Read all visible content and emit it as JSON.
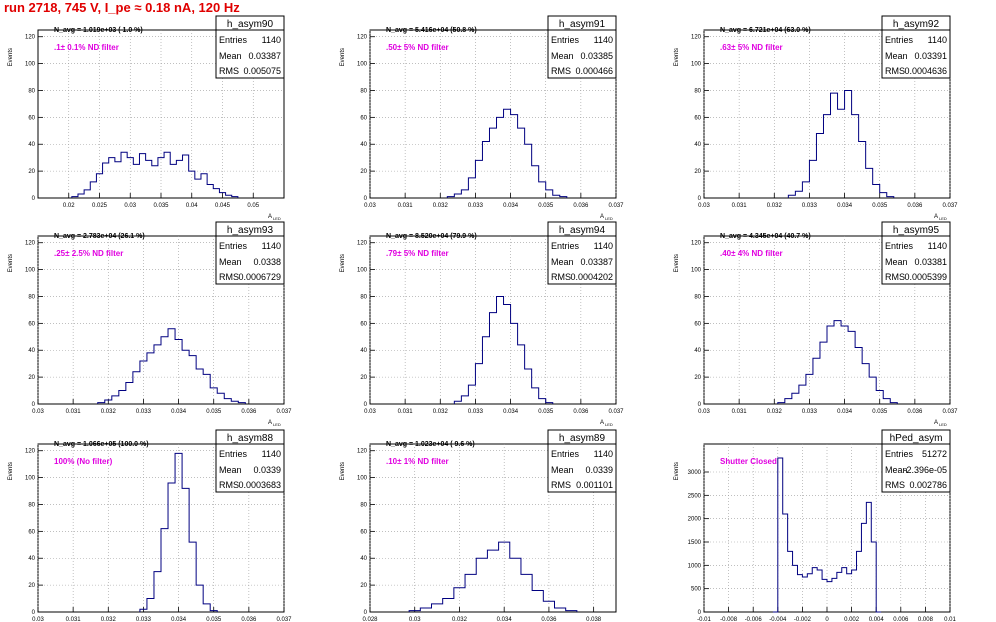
{
  "run_title": "run 2718,   745 V, I_pe ≈ 0.18 nA, 120 Hz",
  "colors": {
    "title": "#e00000",
    "filter_label": "#e000e0",
    "histogram": "#000080",
    "grid": "#999999",
    "axis": "#000000"
  },
  "chart_data": [
    {
      "type": "bar",
      "name": "h_asym90",
      "navg": "N_avg = 1.019e+03 ( 1.0 %)",
      "filter": ".1± 0.1% ND filter",
      "stats": {
        "entries": "1140",
        "mean": "0.03387",
        "rms": "0.005075"
      },
      "stat_labels": {
        "entries": "Entries",
        "mean": "Mean",
        "rms": "RMS"
      },
      "ylabel": "Events",
      "xlabel": "A",
      "xlabel_sub": "LED",
      "xlim": [
        0.015,
        0.055
      ],
      "ylim": [
        0,
        125
      ],
      "xticks": [
        0.02,
        0.025,
        0.03,
        0.035,
        0.04,
        0.045,
        0.05
      ],
      "xtick_labels": [
        "0.02",
        "0.025",
        "0.03",
        "0.035",
        "0.04",
        "0.045",
        "0.05"
      ],
      "yticks": [
        0,
        20,
        40,
        60,
        80,
        100,
        120
      ],
      "ytick_labels": [
        "0",
        "20",
        "40",
        "60",
        "80",
        "100",
        "120"
      ],
      "x": [
        0.021,
        0.022,
        0.023,
        0.024,
        0.025,
        0.026,
        0.027,
        0.028,
        0.029,
        0.03,
        0.031,
        0.032,
        0.033,
        0.034,
        0.035,
        0.036,
        0.037,
        0.038,
        0.039,
        0.04,
        0.041,
        0.042,
        0.043,
        0.044,
        0.045,
        0.046,
        0.047
      ],
      "values": [
        1,
        3,
        6,
        12,
        18,
        26,
        30,
        27,
        34,
        30,
        25,
        33,
        28,
        24,
        30,
        34,
        25,
        28,
        32,
        20,
        14,
        18,
        10,
        7,
        4,
        2,
        1
      ]
    },
    {
      "type": "bar",
      "name": "h_asym91",
      "navg": "N_avg = 5.416e+04 (50.8 %)",
      "filter": ".50± 5% ND filter",
      "stats": {
        "entries": "1140",
        "mean": "0.03385",
        "rms": "0.000466"
      },
      "stat_labels": {
        "entries": "Entries",
        "mean": "Mean",
        "rms": "RMS"
      },
      "ylabel": "Events",
      "xlabel": "A",
      "xlabel_sub": "LED",
      "xlim": [
        0.03,
        0.037
      ],
      "ylim": [
        0,
        125
      ],
      "xticks": [
        0.03,
        0.031,
        0.032,
        0.033,
        0.034,
        0.035,
        0.036,
        0.037
      ],
      "xtick_labels": [
        "0.03",
        "0.031",
        "0.032",
        "0.033",
        "0.034",
        "0.035",
        "0.036",
        "0.037"
      ],
      "yticks": [
        0,
        20,
        40,
        60,
        80,
        100,
        120
      ],
      "ytick_labels": [
        "0",
        "20",
        "40",
        "60",
        "80",
        "100",
        "120"
      ],
      "x": [
        0.0323,
        0.0325,
        0.0327,
        0.0329,
        0.0331,
        0.0333,
        0.0335,
        0.0337,
        0.0339,
        0.0341,
        0.0343,
        0.0345,
        0.0347,
        0.0349,
        0.0351,
        0.0353,
        0.0355
      ],
      "values": [
        1,
        3,
        6,
        15,
        28,
        42,
        52,
        60,
        66,
        62,
        52,
        40,
        24,
        12,
        6,
        2,
        1
      ]
    },
    {
      "type": "bar",
      "name": "h_asym92",
      "navg": "N_avg = 6.721e+04 (63.0 %)",
      "filter": ".63± 5% ND filter",
      "stats": {
        "entries": "1140",
        "mean": "0.03391",
        "rms": "0.0004636"
      },
      "stat_labels": {
        "entries": "Entries",
        "mean": "Mean",
        "rms": "RMS"
      },
      "ylabel": "Events",
      "xlabel": "A",
      "xlabel_sub": "LED",
      "xlim": [
        0.03,
        0.037
      ],
      "ylim": [
        0,
        125
      ],
      "xticks": [
        0.03,
        0.031,
        0.032,
        0.033,
        0.034,
        0.035,
        0.036,
        0.037
      ],
      "xtick_labels": [
        "0.03",
        "0.031",
        "0.032",
        "0.033",
        "0.034",
        "0.035",
        "0.036",
        "0.037"
      ],
      "yticks": [
        0,
        20,
        40,
        60,
        80,
        100,
        120
      ],
      "ytick_labels": [
        "0",
        "20",
        "40",
        "60",
        "80",
        "100",
        "120"
      ],
      "x": [
        0.0325,
        0.0327,
        0.0329,
        0.0331,
        0.0333,
        0.0335,
        0.0337,
        0.0339,
        0.0341,
        0.0343,
        0.0345,
        0.0347,
        0.0349,
        0.0351,
        0.0353
      ],
      "values": [
        2,
        5,
        12,
        28,
        48,
        62,
        78,
        66,
        80,
        62,
        42,
        22,
        10,
        4,
        1
      ]
    },
    {
      "type": "bar",
      "name": "h_asym93",
      "navg": "N_avg = 2.783e+04 (26.1 %)",
      "filter": ".25± 2.5% ND filter",
      "stats": {
        "entries": "1140",
        "mean": "0.0338",
        "rms": "0.0006729"
      },
      "stat_labels": {
        "entries": "Entries",
        "mean": "Mean",
        "rms": "RMS"
      },
      "ylabel": "Events",
      "xlabel": "A",
      "xlabel_sub": "LED",
      "xlim": [
        0.03,
        0.037
      ],
      "ylim": [
        0,
        125
      ],
      "xticks": [
        0.03,
        0.031,
        0.032,
        0.033,
        0.034,
        0.035,
        0.036,
        0.037
      ],
      "xtick_labels": [
        "0.03",
        "0.031",
        "0.032",
        "0.033",
        "0.034",
        "0.035",
        "0.036",
        "0.037"
      ],
      "yticks": [
        0,
        20,
        40,
        60,
        80,
        100,
        120
      ],
      "ytick_labels": [
        "0",
        "20",
        "40",
        "60",
        "80",
        "100",
        "120"
      ],
      "x": [
        0.0318,
        0.032,
        0.0322,
        0.0324,
        0.0326,
        0.0328,
        0.033,
        0.0332,
        0.0334,
        0.0336,
        0.0338,
        0.034,
        0.0342,
        0.0344,
        0.0346,
        0.0348,
        0.035,
        0.0352,
        0.0354,
        0.0356,
        0.0358
      ],
      "values": [
        1,
        3,
        6,
        10,
        16,
        24,
        32,
        38,
        44,
        50,
        56,
        48,
        40,
        36,
        26,
        22,
        12,
        8,
        4,
        2,
        1
      ]
    },
    {
      "type": "bar",
      "name": "h_asym94",
      "navg": "N_avg = 8.520e+04 (79.9 %)",
      "filter": ".79± 5% ND filter",
      "stats": {
        "entries": "1140",
        "mean": "0.03387",
        "rms": "0.0004202"
      },
      "stat_labels": {
        "entries": "Entries",
        "mean": "Mean",
        "rms": "RMS"
      },
      "ylabel": "Events",
      "xlabel": "A",
      "xlabel_sub": "LED",
      "xlim": [
        0.03,
        0.037
      ],
      "ylim": [
        0,
        125
      ],
      "xticks": [
        0.03,
        0.031,
        0.032,
        0.033,
        0.034,
        0.035,
        0.036,
        0.037
      ],
      "xtick_labels": [
        "0.03",
        "0.031",
        "0.032",
        "0.033",
        "0.034",
        "0.035",
        "0.036",
        "0.037"
      ],
      "yticks": [
        0,
        20,
        40,
        60,
        80,
        100,
        120
      ],
      "ytick_labels": [
        "0",
        "20",
        "40",
        "60",
        "80",
        "100",
        "120"
      ],
      "x": [
        0.0325,
        0.0327,
        0.0329,
        0.0331,
        0.0333,
        0.0335,
        0.0337,
        0.0339,
        0.0341,
        0.0343,
        0.0345,
        0.0347,
        0.0349,
        0.0351
      ],
      "values": [
        2,
        6,
        14,
        30,
        50,
        68,
        80,
        74,
        60,
        44,
        26,
        12,
        4,
        1
      ]
    },
    {
      "type": "bar",
      "name": "h_asym95",
      "navg": "N_avg = 4.345e+04 (40.7 %)",
      "filter": ".40± 4% ND filter",
      "stats": {
        "entries": "1140",
        "mean": "0.03381",
        "rms": "0.0005399"
      },
      "stat_labels": {
        "entries": "Entries",
        "mean": "Mean",
        "rms": "RMS"
      },
      "ylabel": "Events",
      "xlabel": "A",
      "xlabel_sub": "LED",
      "xlim": [
        0.03,
        0.037
      ],
      "ylim": [
        0,
        125
      ],
      "xticks": [
        0.03,
        0.031,
        0.032,
        0.033,
        0.034,
        0.035,
        0.036,
        0.037
      ],
      "xtick_labels": [
        "0.03",
        "0.031",
        "0.032",
        "0.033",
        "0.034",
        "0.035",
        "0.036",
        "0.037"
      ],
      "yticks": [
        0,
        20,
        40,
        60,
        80,
        100,
        120
      ],
      "ytick_labels": [
        "0",
        "20",
        "40",
        "60",
        "80",
        "100",
        "120"
      ],
      "x": [
        0.0322,
        0.0324,
        0.0326,
        0.0328,
        0.033,
        0.0332,
        0.0334,
        0.0336,
        0.0338,
        0.034,
        0.0342,
        0.0344,
        0.0346,
        0.0348,
        0.035,
        0.0352,
        0.0354
      ],
      "values": [
        1,
        4,
        8,
        14,
        22,
        34,
        46,
        58,
        62,
        58,
        54,
        42,
        30,
        20,
        10,
        4,
        1
      ]
    },
    {
      "type": "bar",
      "name": "h_asym88",
      "navg": "N_avg = 1.066e+05 (100.0 %)",
      "filter": "100% (No filter)",
      "stats": {
        "entries": "1140",
        "mean": "0.0339",
        "rms": "0.0003683"
      },
      "stat_labels": {
        "entries": "Entries",
        "mean": "Mean",
        "rms": "RMS"
      },
      "ylabel": "Events",
      "xlabel": "A",
      "xlabel_sub": "LED",
      "xlim": [
        0.03,
        0.037
      ],
      "ylim": [
        0,
        125
      ],
      "xticks": [
        0.03,
        0.031,
        0.032,
        0.033,
        0.034,
        0.035,
        0.036,
        0.037
      ],
      "xtick_labels": [
        "0.03",
        "0.031",
        "0.032",
        "0.033",
        "0.034",
        "0.035",
        "0.036",
        "0.037"
      ],
      "yticks": [
        0,
        20,
        40,
        60,
        80,
        100,
        120
      ],
      "ytick_labels": [
        "0",
        "20",
        "40",
        "60",
        "80",
        "100",
        "120"
      ],
      "x": [
        0.033,
        0.0332,
        0.0334,
        0.0336,
        0.0338,
        0.034,
        0.0342,
        0.0344,
        0.0346,
        0.0348,
        0.035
      ],
      "values": [
        2,
        10,
        30,
        62,
        96,
        118,
        92,
        52,
        20,
        6,
        1
      ]
    },
    {
      "type": "bar",
      "name": "h_asym89",
      "navg": "N_avg = 1.023e+04 ( 9.6 %)",
      "filter": ".10± 1% ND filter",
      "stats": {
        "entries": "1140",
        "mean": "0.0339",
        "rms": "0.001101"
      },
      "stat_labels": {
        "entries": "Entries",
        "mean": "Mean",
        "rms": "RMS"
      },
      "ylabel": "Events",
      "xlabel": "A",
      "xlabel_sub": "LED",
      "xlim": [
        0.028,
        0.039
      ],
      "ylim": [
        0,
        125
      ],
      "xticks": [
        0.028,
        0.03,
        0.032,
        0.034,
        0.036,
        0.038
      ],
      "xtick_labels": [
        "0.028",
        "0.03",
        "0.032",
        "0.034",
        "0.036",
        "0.038"
      ],
      "yticks": [
        0,
        20,
        40,
        60,
        80,
        100,
        120
      ],
      "ytick_labels": [
        "0",
        "20",
        "40",
        "60",
        "80",
        "100",
        "120"
      ],
      "x": [
        0.03,
        0.0305,
        0.031,
        0.0315,
        0.032,
        0.0325,
        0.033,
        0.0335,
        0.034,
        0.0345,
        0.035,
        0.0355,
        0.036,
        0.0365,
        0.037
      ],
      "values": [
        1,
        3,
        6,
        10,
        18,
        28,
        40,
        46,
        52,
        40,
        28,
        16,
        8,
        3,
        1
      ]
    },
    {
      "type": "bar",
      "name": "hPed_asym",
      "navg": "",
      "filter": "Shutter Closed",
      "stats": {
        "entries": "51272",
        "mean": "-2.396e-05",
        "rms": "0.002786"
      },
      "stat_labels": {
        "entries": "Entries",
        "mean": "Mean",
        "rms": "RMS"
      },
      "ylabel": "Events",
      "xlabel": "A",
      "xlabel_sub": "LED",
      "xlim": [
        -0.01,
        0.01
      ],
      "ylim": [
        0,
        3600
      ],
      "xticks": [
        -0.01,
        -0.008,
        -0.006,
        -0.004,
        -0.002,
        0.0,
        0.002,
        0.004,
        0.006,
        0.008,
        0.01
      ],
      "xtick_labels": [
        "-0.01",
        "-0.008",
        "-0.006",
        "-0.004",
        "-0.002",
        "0",
        "0.002",
        "0.004",
        "0.006",
        "0.008",
        "0.01"
      ],
      "yticks": [
        0,
        500,
        1000,
        1500,
        2000,
        2500,
        3000
      ],
      "ytick_labels": [
        "0",
        "500",
        "1000",
        "1500",
        "2000",
        "2500",
        "3000"
      ],
      "x": [
        -0.0042,
        -0.0038,
        -0.0034,
        -0.003,
        -0.0026,
        -0.0022,
        -0.0018,
        -0.0014,
        -0.001,
        -0.0006,
        -0.0002,
        0.0002,
        0.0006,
        0.001,
        0.0014,
        0.0018,
        0.0022,
        0.0026,
        0.003,
        0.0034,
        0.0038,
        0.0042
      ],
      "values": [
        0,
        3300,
        2100,
        1300,
        1000,
        800,
        750,
        820,
        950,
        900,
        700,
        650,
        720,
        850,
        950,
        820,
        900,
        1300,
        1900,
        2350,
        1500,
        0
      ]
    }
  ]
}
